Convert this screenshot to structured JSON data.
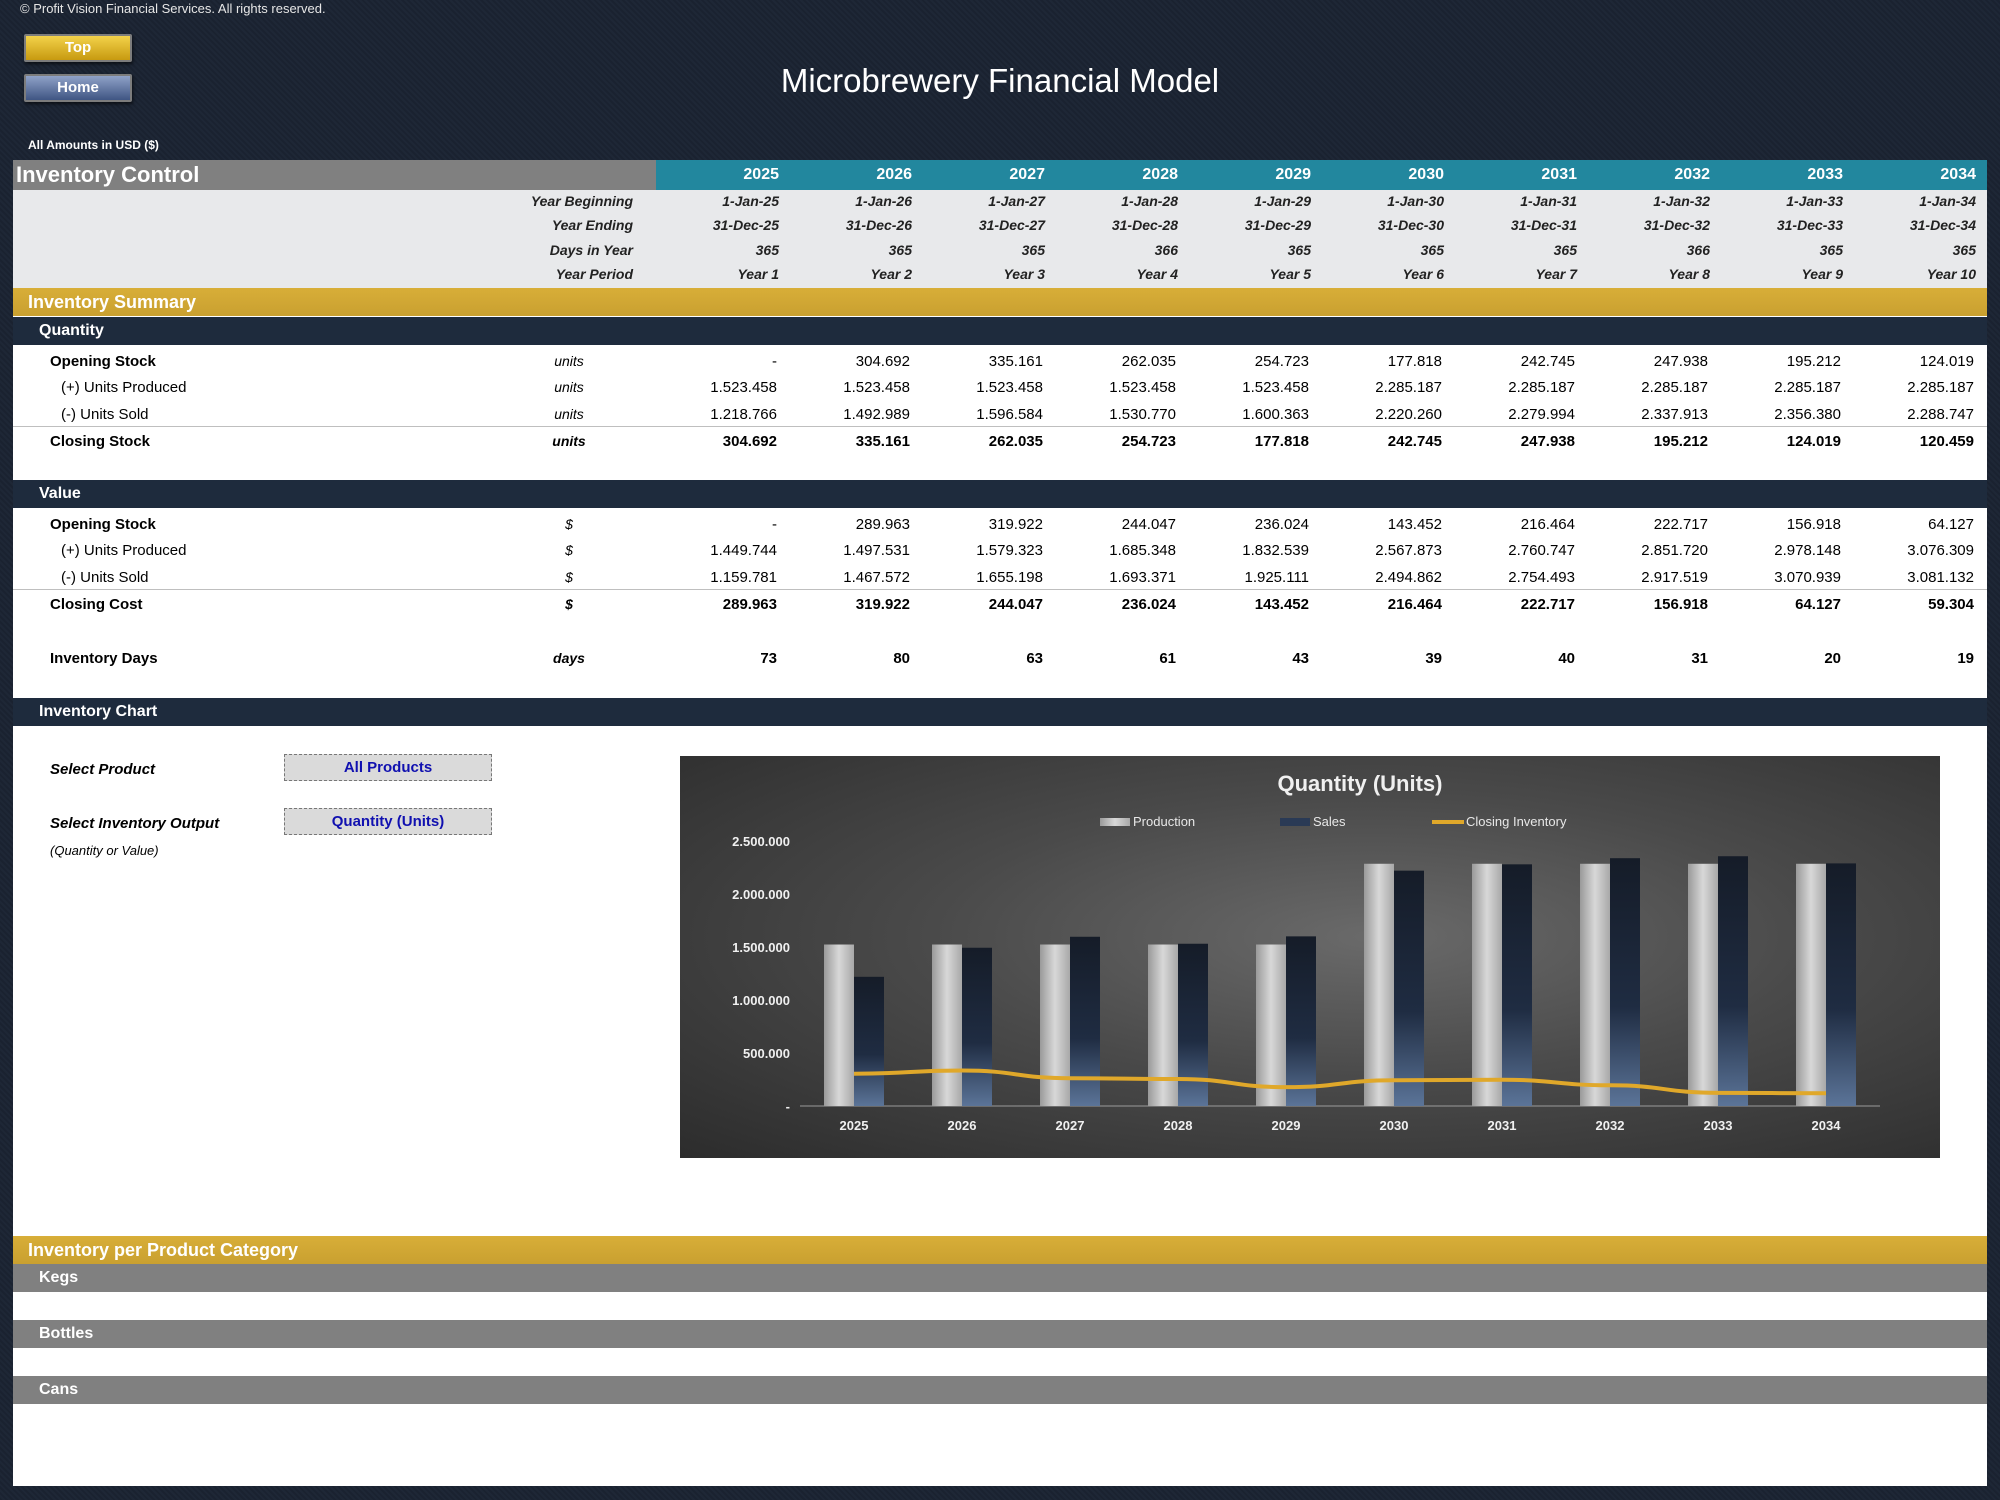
{
  "copyright": "© Profit Vision Financial Services. All rights reserved.",
  "nav": {
    "top_label": "Top",
    "home_label": "Home"
  },
  "title": "Microbrewery Financial Model",
  "amounts_note": "All Amounts in  USD ($)",
  "section": {
    "title": "Inventory Control"
  },
  "years": [
    "2025",
    "2026",
    "2027",
    "2028",
    "2029",
    "2030",
    "2031",
    "2032",
    "2033",
    "2034"
  ],
  "meta": {
    "labels": {
      "year_beginning": "Year Beginning",
      "year_ending": "Year Ending",
      "days_in_year": "Days in Year",
      "year_period": "Year Period"
    },
    "year_beginning": [
      "1-Jan-25",
      "1-Jan-26",
      "1-Jan-27",
      "1-Jan-28",
      "1-Jan-29",
      "1-Jan-30",
      "1-Jan-31",
      "1-Jan-32",
      "1-Jan-33",
      "1-Jan-34"
    ],
    "year_ending": [
      "31-Dec-25",
      "31-Dec-26",
      "31-Dec-27",
      "31-Dec-28",
      "31-Dec-29",
      "31-Dec-30",
      "31-Dec-31",
      "31-Dec-32",
      "31-Dec-33",
      "31-Dec-34"
    ],
    "days_in_year": [
      "365",
      "365",
      "365",
      "366",
      "365",
      "365",
      "365",
      "366",
      "365",
      "365"
    ],
    "year_period": [
      "Year 1",
      "Year 2",
      "Year 3",
      "Year 4",
      "Year 5",
      "Year 6",
      "Year 7",
      "Year 8",
      "Year 9",
      "Year 10"
    ]
  },
  "summary_title": "Inventory Summary",
  "quantity": {
    "title": "Quantity",
    "rows": [
      {
        "label": "Opening Stock",
        "unit": "units",
        "style": "main",
        "values": [
          "-",
          "304.692",
          "335.161",
          "262.035",
          "254.723",
          "177.818",
          "242.745",
          "247.938",
          "195.212",
          "124.019"
        ]
      },
      {
        "label": "(+) Units Produced",
        "unit": "units",
        "style": "sub",
        "values": [
          "1.523.458",
          "1.523.458",
          "1.523.458",
          "1.523.458",
          "1.523.458",
          "2.285.187",
          "2.285.187",
          "2.285.187",
          "2.285.187",
          "2.285.187"
        ]
      },
      {
        "label": "(-) Units Sold",
        "unit": "units",
        "style": "sub",
        "values": [
          "1.218.766",
          "1.492.989",
          "1.596.584",
          "1.530.770",
          "1.600.363",
          "2.220.260",
          "2.279.994",
          "2.337.913",
          "2.356.380",
          "2.288.747"
        ]
      },
      {
        "label": "Closing Stock",
        "unit": "units",
        "style": "total",
        "values": [
          "304.692",
          "335.161",
          "262.035",
          "254.723",
          "177.818",
          "242.745",
          "247.938",
          "195.212",
          "124.019",
          "120.459"
        ]
      }
    ]
  },
  "value": {
    "title": "Value",
    "rows": [
      {
        "label": "Opening Stock",
        "unit": "$",
        "style": "main",
        "values": [
          "-",
          "289.963",
          "319.922",
          "244.047",
          "236.024",
          "143.452",
          "216.464",
          "222.717",
          "156.918",
          "64.127"
        ]
      },
      {
        "label": "(+) Units Produced",
        "unit": "$",
        "style": "sub",
        "values": [
          "1.449.744",
          "1.497.531",
          "1.579.323",
          "1.685.348",
          "1.832.539",
          "2.567.873",
          "2.760.747",
          "2.851.720",
          "2.978.148",
          "3.076.309"
        ]
      },
      {
        "label": "(-) Units Sold",
        "unit": "$",
        "style": "sub",
        "values": [
          "1.159.781",
          "1.467.572",
          "1.655.198",
          "1.693.371",
          "1.925.111",
          "2.494.862",
          "2.754.493",
          "2.917.519",
          "3.070.939",
          "3.081.132"
        ]
      },
      {
        "label": "Closing Cost",
        "unit": "$",
        "style": "total",
        "values": [
          "289.963",
          "319.922",
          "244.047",
          "236.024",
          "143.452",
          "216.464",
          "222.717",
          "156.918",
          "64.127",
          "59.304"
        ]
      }
    ]
  },
  "inventory_days": {
    "label": "Inventory Days",
    "unit": "days",
    "values": [
      "73",
      "80",
      "63",
      "61",
      "43",
      "39",
      "40",
      "31",
      "20",
      "19"
    ]
  },
  "chart_section": {
    "title": "Inventory Chart",
    "select_product_label": "Select Product",
    "select_product_value": "All Products",
    "select_output_label": "Select Inventory Output",
    "select_output_value": "Quantity (Units)",
    "output_note": "(Quantity or Value)"
  },
  "chart_data": {
    "type": "bar",
    "title": "Quantity (Units)",
    "categories": [
      "2025",
      "2026",
      "2027",
      "2028",
      "2029",
      "2030",
      "2031",
      "2032",
      "2033",
      "2034"
    ],
    "ylim": [
      0,
      2500000
    ],
    "y_ticks": [
      "-",
      "500.000",
      "1.000.000",
      "1.500.000",
      "2.000.000",
      "2.500.000"
    ],
    "legend_position": "top",
    "series": [
      {
        "name": "Production",
        "kind": "bar",
        "values": [
          1523458,
          1523458,
          1523458,
          1523458,
          1523458,
          2285187,
          2285187,
          2285187,
          2285187,
          2285187
        ]
      },
      {
        "name": "Sales",
        "kind": "bar",
        "values": [
          1218766,
          1492989,
          1596584,
          1530770,
          1600363,
          2220260,
          2279994,
          2337913,
          2356380,
          2288747
        ]
      },
      {
        "name": "Closing Inventory",
        "kind": "line",
        "values": [
          304692,
          335161,
          262035,
          254723,
          177818,
          242745,
          247938,
          195212,
          124019,
          120459
        ]
      }
    ],
    "colors": {
      "production": "#c8c8c8",
      "sales": "#1c2638",
      "closing": "#e0a82a"
    }
  },
  "categories_section": {
    "title": "Inventory per Product Category",
    "items": [
      "Kegs",
      "Bottles",
      "Cans"
    ]
  }
}
